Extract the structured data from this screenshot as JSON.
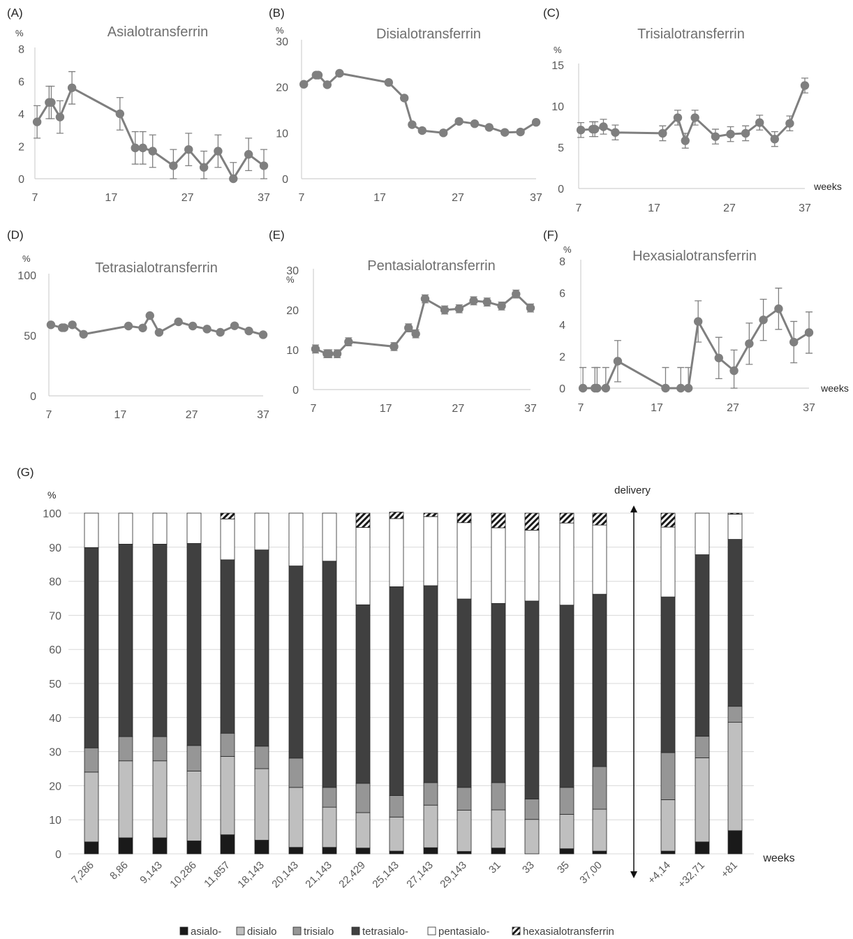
{
  "chart_data": [
    {
      "type": "line",
      "panel_label": "(A)",
      "title": "Asialotransferrin",
      "ylabel": "%",
      "xlabel": "",
      "ylim": [
        0,
        8
      ],
      "yticks": [
        0,
        2,
        4,
        6,
        8
      ],
      "xlim": [
        7,
        37
      ],
      "xticks": [
        7,
        17,
        27,
        37
      ],
      "x": [
        7.286,
        8.86,
        9.143,
        10.286,
        11.857,
        18.143,
        20.143,
        21.143,
        22.429,
        25.143,
        27.143,
        29.143,
        31,
        33,
        35,
        37
      ],
      "y": [
        3.5,
        4.7,
        4.7,
        3.8,
        5.6,
        4.0,
        1.9,
        1.9,
        1.7,
        0.8,
        1.8,
        0.7,
        1.7,
        0.0,
        1.5,
        0.8
      ],
      "err": [
        1.0,
        1.0,
        1.0,
        1.0,
        1.0,
        1.0,
        1.0,
        1.0,
        1.0,
        1.0,
        1.0,
        1.0,
        1.0,
        1.0,
        1.0,
        1.0
      ]
    },
    {
      "type": "line",
      "panel_label": "(B)",
      "title": "Disialotransferrin",
      "ylabel": "%",
      "xlabel": "",
      "ylim": [
        0,
        30
      ],
      "yticks": [
        0,
        10,
        20,
        30
      ],
      "xlim": [
        7,
        37
      ],
      "xticks": [
        7,
        17,
        27,
        37
      ],
      "x": [
        7.286,
        8.86,
        9.143,
        10.286,
        11.857,
        18.143,
        20.143,
        21.143,
        22.429,
        25.143,
        27.143,
        29.143,
        31,
        33,
        35,
        37
      ],
      "y": [
        20.6,
        22.6,
        22.6,
        20.5,
        23.0,
        21.0,
        17.6,
        11.8,
        10.5,
        10.0,
        12.5,
        12.0,
        11.2,
        10.1,
        10.2,
        12.3
      ],
      "err": [
        0.5,
        0.5,
        0.5,
        0.5,
        0.5,
        0.5,
        0.5,
        0.5,
        0.5,
        0.5,
        0.5,
        0.5,
        0.5,
        0.5,
        0.5,
        0.5
      ]
    },
    {
      "type": "line",
      "panel_label": "(C)",
      "title": "Trisialotransferrin",
      "ylabel": "%",
      "xlabel": "weeks",
      "ylim": [
        0,
        15
      ],
      "yticks": [
        0,
        5,
        10,
        15
      ],
      "xlim": [
        7,
        37
      ],
      "xticks": [
        7,
        17,
        27,
        37
      ],
      "x": [
        7.286,
        8.86,
        9.143,
        10.286,
        11.857,
        18.143,
        20.143,
        21.143,
        22.429,
        25.143,
        27.143,
        29.143,
        31,
        33,
        35,
        37
      ],
      "y": [
        7.1,
        7.2,
        7.2,
        7.5,
        6.8,
        6.7,
        8.6,
        5.8,
        8.6,
        6.3,
        6.6,
        6.7,
        8.0,
        6.0,
        7.9,
        12.5
      ],
      "err": [
        0.9,
        0.9,
        0.9,
        0.9,
        0.9,
        0.9,
        0.9,
        0.9,
        0.9,
        0.9,
        0.9,
        0.9,
        0.9,
        0.9,
        0.9,
        0.9
      ]
    },
    {
      "type": "line",
      "panel_label": "(D)",
      "title": "Tetrasialotransferrin",
      "ylabel": "%",
      "xlabel": "",
      "ylim": [
        0,
        100
      ],
      "yticks": [
        0,
        50,
        100
      ],
      "xlim": [
        7,
        37
      ],
      "xticks": [
        7,
        17,
        27,
        37
      ],
      "x": [
        7.286,
        8.86,
        9.143,
        10.286,
        11.857,
        18.143,
        20.143,
        21.143,
        22.429,
        25.143,
        27.143,
        29.143,
        31,
        33,
        35,
        37
      ],
      "y": [
        58.8,
        56.4,
        56.4,
        58.8,
        51.0,
        57.8,
        56.2,
        66.4,
        52.5,
        61.3,
        57.8,
        55.3,
        52.6,
        58.0,
        53.7,
        50.6
      ],
      "err": [
        0,
        0,
        0,
        0,
        0,
        0,
        0,
        0,
        0,
        0,
        0,
        0,
        0,
        0,
        0,
        0
      ]
    },
    {
      "type": "line",
      "panel_label": "(E)",
      "title": "Pentasialotransferrin",
      "ylabel": "%",
      "xlabel": "",
      "ylim": [
        0,
        30
      ],
      "yticks": [
        0,
        10,
        20,
        30
      ],
      "xlim": [
        7,
        37
      ],
      "xticks": [
        7,
        17,
        27,
        37
      ],
      "x": [
        7.286,
        8.86,
        9.143,
        10.286,
        11.857,
        18.143,
        20.143,
        21.143,
        22.429,
        25.143,
        27.143,
        29.143,
        31,
        33,
        35,
        37
      ],
      "y": [
        10.2,
        9.0,
        9.0,
        9.0,
        12.0,
        10.8,
        15.5,
        14.0,
        22.8,
        20.0,
        20.3,
        22.3,
        22.0,
        21.0,
        24.0,
        20.5
      ],
      "err": [
        1.0,
        1.0,
        1.0,
        1.0,
        1.0,
        1.0,
        1.0,
        1.0,
        1.0,
        1.0,
        1.0,
        1.0,
        1.0,
        1.0,
        1.0,
        1.0
      ]
    },
    {
      "type": "line",
      "panel_label": "(F)",
      "title": "Hexasialotransferrin",
      "ylabel": "%",
      "xlabel": "weeks",
      "ylim": [
        0,
        8
      ],
      "yticks": [
        0,
        2,
        4,
        6,
        8
      ],
      "xlim": [
        7,
        37
      ],
      "xticks": [
        7,
        17,
        27,
        37
      ],
      "x": [
        7.286,
        8.86,
        9.143,
        10.286,
        11.857,
        18.143,
        20.143,
        21.143,
        22.429,
        25.143,
        27.143,
        29.143,
        31,
        33,
        35,
        37
      ],
      "y": [
        0.0,
        0.0,
        0.0,
        0.0,
        1.7,
        0.0,
        0.0,
        0.0,
        4.2,
        1.9,
        1.1,
        2.8,
        4.3,
        5.0,
        2.9,
        3.5
      ],
      "err": [
        1.3,
        1.3,
        1.3,
        1.3,
        1.3,
        1.3,
        1.3,
        1.3,
        1.3,
        1.3,
        1.3,
        1.3,
        1.3,
        1.3,
        1.3,
        1.3
      ]
    },
    {
      "type": "bar",
      "stacked": true,
      "panel_label": "(G)",
      "ylabel": "%",
      "xlabel": "weeks",
      "ylim": [
        0,
        100
      ],
      "yticks": [
        0,
        10,
        20,
        30,
        40,
        50,
        60,
        70,
        80,
        90,
        100
      ],
      "grid": true,
      "annotation": "delivery",
      "legend_position": "bottom",
      "categories": [
        "7,286",
        "8,86",
        "9,143",
        "10,286",
        "11,857",
        "18,143",
        "20,143",
        "21,143",
        "22,429",
        "25,143",
        "27,143",
        "29,143",
        "31",
        "33",
        "35",
        "37,00",
        "+4,14",
        "+32,71",
        "+81"
      ],
      "series": [
        {
          "name": "asialo-",
          "color": "#1a1a1a",
          "values": [
            3.5,
            4.7,
            4.7,
            3.8,
            5.6,
            4.0,
            1.9,
            1.9,
            1.7,
            0.8,
            1.8,
            0.7,
            1.7,
            0.0,
            1.5,
            0.8,
            0.8,
            3.5,
            6.8
          ]
        },
        {
          "name": "disialo",
          "color": "#bfbfbf",
          "values": [
            20.5,
            22.6,
            22.6,
            20.5,
            23.0,
            21.0,
            17.6,
            11.8,
            10.4,
            10.0,
            12.5,
            12.1,
            11.2,
            10.1,
            10.1,
            12.3,
            15.1,
            24.7,
            31.8
          ]
        },
        {
          "name": "trisialo",
          "color": "#969696",
          "values": [
            7.1,
            7.1,
            7.1,
            7.5,
            6.8,
            6.6,
            8.6,
            5.8,
            8.6,
            6.3,
            6.6,
            6.7,
            8.0,
            6.0,
            7.9,
            12.5,
            13.8,
            6.3,
            4.7
          ]
        },
        {
          "name": "tetrasialo-",
          "color": "#404040",
          "values": [
            58.8,
            56.5,
            56.5,
            59.3,
            50.9,
            57.6,
            56.4,
            66.4,
            52.4,
            61.3,
            57.8,
            55.3,
            52.6,
            58.1,
            53.5,
            50.6,
            45.7,
            53.3,
            49.0
          ]
        },
        {
          "name": "pentasialo-",
          "color": "#ffffff",
          "values": [
            10.1,
            9.1,
            9.1,
            8.9,
            12.0,
            10.8,
            15.5,
            14.1,
            22.7,
            20.0,
            20.3,
            22.4,
            22.2,
            20.8,
            24.1,
            20.3,
            20.5,
            12.2,
            7.4
          ]
        },
        {
          "name": "hexasialotransferrin",
          "color": "hatched",
          "values": [
            0.0,
            0.0,
            0.0,
            0.0,
            1.7,
            0.0,
            0.0,
            0.0,
            4.2,
            1.9,
            1.0,
            2.8,
            4.3,
            5.0,
            2.9,
            3.5,
            4.1,
            0.0,
            0.3
          ]
        }
      ]
    }
  ]
}
